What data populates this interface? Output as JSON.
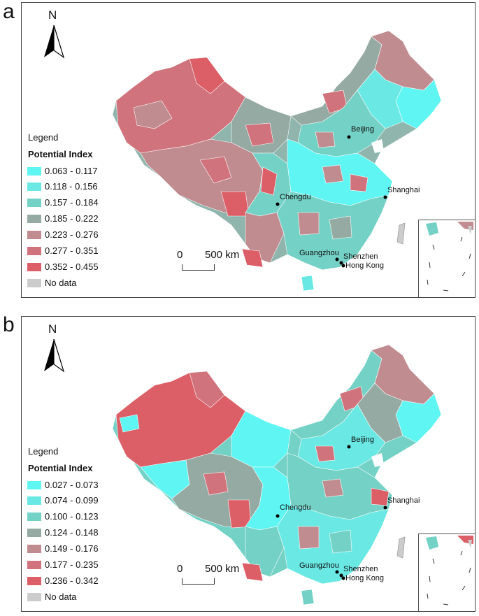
{
  "panels": [
    {
      "letter": "a",
      "north": "N",
      "legend_title": "Legend",
      "legend_subtitle": "Potential Index",
      "classes": [
        {
          "label": "0.063 - 0.117",
          "color": "#5ff5f2"
        },
        {
          "label": "0.118 - 0.156",
          "color": "#6ae8e3"
        },
        {
          "label": "0.157 - 0.184",
          "color": "#74d1c6"
        },
        {
          "label": "0.185 - 0.222",
          "color": "#95aaa3"
        },
        {
          "label": "0.223 - 0.276",
          "color": "#c08c90"
        },
        {
          "label": "0.277 - 0.351",
          "color": "#d1737c"
        },
        {
          "label": "0.352 - 0.455",
          "color": "#dc5e66"
        },
        {
          "label": "No data",
          "color": "#cccccc"
        }
      ],
      "scale_zero": "0",
      "scale_label": "500 km",
      "cities": [
        "Beijing",
        "Chengdu",
        "Shanghai",
        "Guangzhou",
        "Shenzhen",
        "Hong Kong"
      ]
    },
    {
      "letter": "b",
      "north": "N",
      "legend_title": "Legend",
      "legend_subtitle": "Potential Index",
      "classes": [
        {
          "label": "0.027 - 0.073",
          "color": "#5ff5f2"
        },
        {
          "label": "0.074 - 0.099",
          "color": "#6ae8e3"
        },
        {
          "label": "0.100 - 0.123",
          "color": "#74d1c6"
        },
        {
          "label": "0.124 - 0.148",
          "color": "#95aaa3"
        },
        {
          "label": "0.149 - 0.176",
          "color": "#c08c90"
        },
        {
          "label": "0.177 - 0.235",
          "color": "#d1737c"
        },
        {
          "label": "0.236 - 0.342",
          "color": "#dc5e66"
        },
        {
          "label": "No data",
          "color": "#cccccc"
        }
      ],
      "scale_zero": "0",
      "scale_label": "500 km",
      "cities": [
        "Beijing",
        "Chengdu",
        "Shanghai",
        "Guangzhou",
        "Shenzhen",
        "Hong Kong"
      ]
    }
  ]
}
